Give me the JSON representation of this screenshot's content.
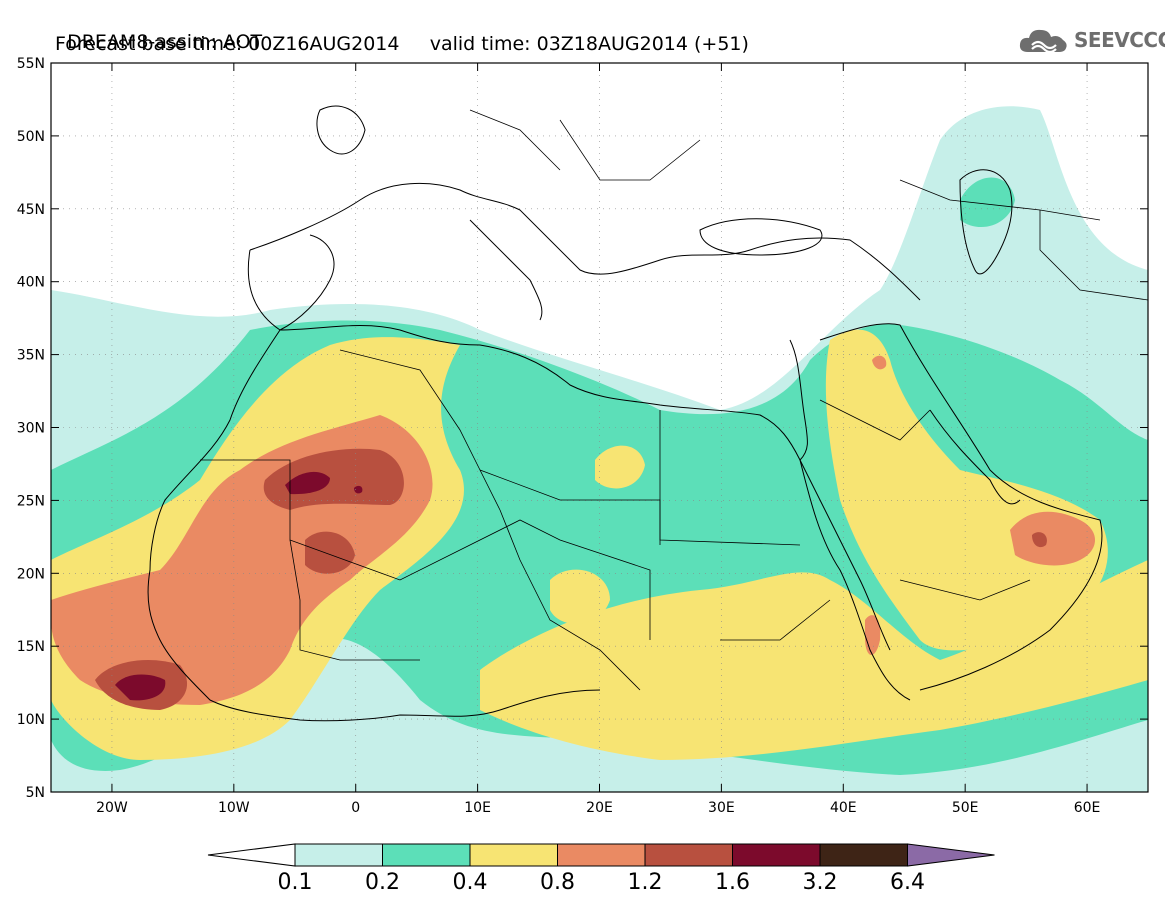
{
  "header": {
    "line1": "DREAM8-assim: AOT",
    "base_label": "Forecast base time: 00Z16AUG2014",
    "valid_label": "valid time: 03Z18AUG2014 (+51)"
  },
  "logo": {
    "text": "SEEVCCC",
    "color": "#6e6e6e"
  },
  "map": {
    "lon_range": [
      -25,
      65
    ],
    "lat_range": [
      5,
      55
    ],
    "lon_ticks": [
      {
        "value": -20,
        "label": "20W"
      },
      {
        "value": -10,
        "label": "10W"
      },
      {
        "value": 0,
        "label": "0"
      },
      {
        "value": 10,
        "label": "10E"
      },
      {
        "value": 20,
        "label": "20E"
      },
      {
        "value": 30,
        "label": "30E"
      },
      {
        "value": 40,
        "label": "40E"
      },
      {
        "value": 50,
        "label": "50E"
      },
      {
        "value": 60,
        "label": "60E"
      }
    ],
    "lat_ticks": [
      {
        "value": 5,
        "label": "5N"
      },
      {
        "value": 10,
        "label": "10N"
      },
      {
        "value": 15,
        "label": "15N"
      },
      {
        "value": 20,
        "label": "20N"
      },
      {
        "value": 25,
        "label": "25N"
      },
      {
        "value": 30,
        "label": "30N"
      },
      {
        "value": 35,
        "label": "35N"
      },
      {
        "value": 40,
        "label": "40N"
      },
      {
        "value": 45,
        "label": "45N"
      },
      {
        "value": 50,
        "label": "50N"
      },
      {
        "value": 55,
        "label": "55N"
      }
    ]
  },
  "colorbar": {
    "levels": [
      {
        "label": "0.1",
        "color": "#c6efe9"
      },
      {
        "label": "0.2",
        "color": "#5cdfb8"
      },
      {
        "label": "0.4",
        "color": "#f7e473"
      },
      {
        "label": "0.8",
        "color": "#ea8a63"
      },
      {
        "label": "1.2",
        "color": "#b8503f"
      },
      {
        "label": "1.6",
        "color": "#7c0a2c"
      },
      {
        "label": "3.2",
        "color": "#3e2416"
      },
      {
        "label": "6.4",
        "color": "#8b6aa6"
      }
    ],
    "low_color": "#ffffff"
  }
}
